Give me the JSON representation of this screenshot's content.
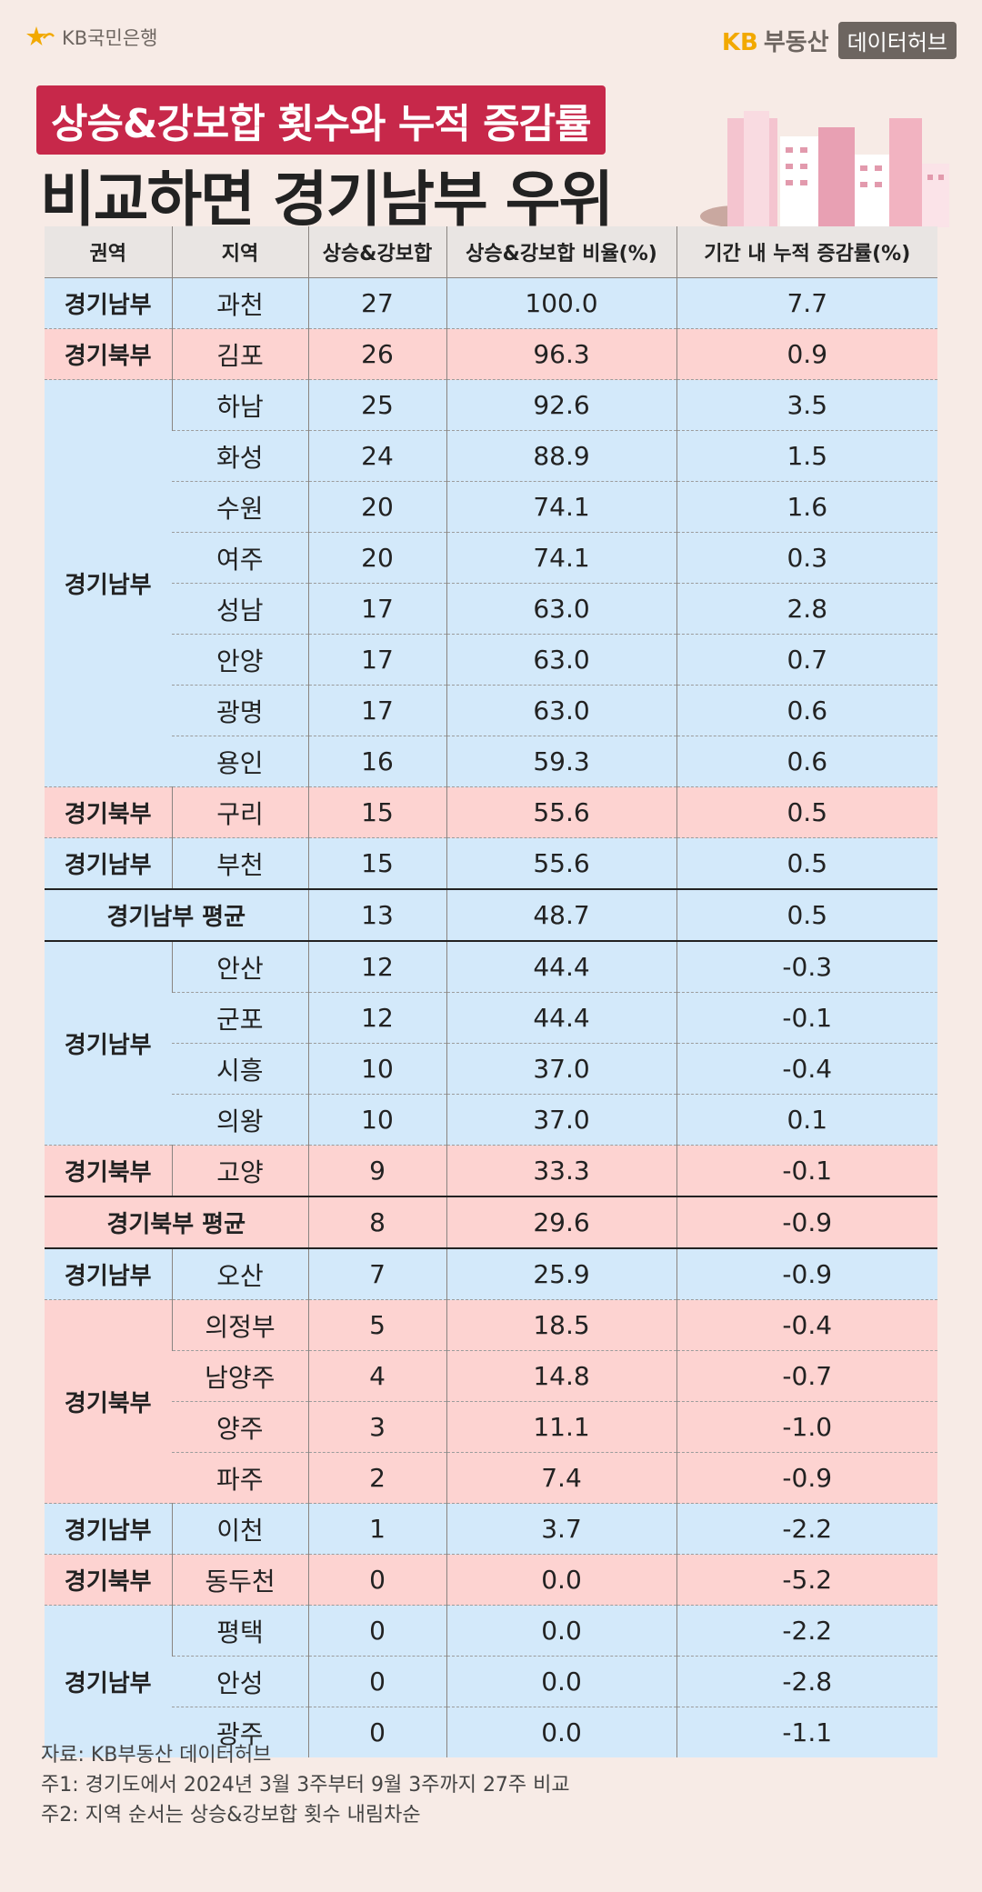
{
  "brand": {
    "bank": "KB국민은행",
    "kb": "KB",
    "site": "부동산",
    "hub": "데이터허브"
  },
  "title": {
    "line1": "상승&강보합 횟수와 누적 증감률",
    "line2": "비교하면 경기남부 우위"
  },
  "table": {
    "headers": [
      "권역",
      "지역",
      "상승&강보합",
      "상승&강보합 비율(%)",
      "기간 내 누적 증감률(%)"
    ],
    "rows": [
      {
        "region": "경기남부",
        "area": "과천",
        "count": "27",
        "ratio": "100.0",
        "change": "7.7"
      },
      {
        "region": "경기북부",
        "area": "김포",
        "count": "26",
        "ratio": "96.3",
        "change": "0.9"
      },
      {
        "region": "경기남부",
        "area": "하남",
        "count": "25",
        "ratio": "92.6",
        "change": "3.5"
      },
      {
        "region": "",
        "area": "화성",
        "count": "24",
        "ratio": "88.9",
        "change": "1.5"
      },
      {
        "region": "",
        "area": "수원",
        "count": "20",
        "ratio": "74.1",
        "change": "1.6"
      },
      {
        "region": "",
        "area": "여주",
        "count": "20",
        "ratio": "74.1",
        "change": "0.3"
      },
      {
        "region": "",
        "area": "성남",
        "count": "17",
        "ratio": "63.0",
        "change": "2.8"
      },
      {
        "region": "",
        "area": "안양",
        "count": "17",
        "ratio": "63.0",
        "change": "0.7"
      },
      {
        "region": "",
        "area": "광명",
        "count": "17",
        "ratio": "63.0",
        "change": "0.6"
      },
      {
        "region": "",
        "area": "용인",
        "count": "16",
        "ratio": "59.3",
        "change": "0.6"
      },
      {
        "region": "경기북부",
        "area": "구리",
        "count": "15",
        "ratio": "55.6",
        "change": "0.5"
      },
      {
        "region": "경기남부",
        "area": "부천",
        "count": "15",
        "ratio": "55.6",
        "change": "0.5"
      },
      {
        "region": "경기남부 평균",
        "area": "",
        "count": "13",
        "ratio": "48.7",
        "change": "0.5"
      },
      {
        "region": "경기남부",
        "area": "안산",
        "count": "12",
        "ratio": "44.4",
        "change": "-0.3"
      },
      {
        "region": "",
        "area": "군포",
        "count": "12",
        "ratio": "44.4",
        "change": "-0.1"
      },
      {
        "region": "",
        "area": "시흥",
        "count": "10",
        "ratio": "37.0",
        "change": "-0.4"
      },
      {
        "region": "",
        "area": "의왕",
        "count": "10",
        "ratio": "37.0",
        "change": "0.1"
      },
      {
        "region": "경기북부",
        "area": "고양",
        "count": "9",
        "ratio": "33.3",
        "change": "-0.1"
      },
      {
        "region": "경기북부 평균",
        "area": "",
        "count": "8",
        "ratio": "29.6",
        "change": "-0.9"
      },
      {
        "region": "경기남부",
        "area": "오산",
        "count": "7",
        "ratio": "25.9",
        "change": "-0.9"
      },
      {
        "region": "경기북부",
        "area": "의정부",
        "count": "5",
        "ratio": "18.5",
        "change": "-0.4"
      },
      {
        "region": "",
        "area": "남양주",
        "count": "4",
        "ratio": "14.8",
        "change": "-0.7"
      },
      {
        "region": "",
        "area": "양주",
        "count": "3",
        "ratio": "11.1",
        "change": "-1.0"
      },
      {
        "region": "",
        "area": "파주",
        "count": "2",
        "ratio": "7.4",
        "change": "-0.9"
      },
      {
        "region": "경기남부",
        "area": "이천",
        "count": "1",
        "ratio": "3.7",
        "change": "-2.2"
      },
      {
        "region": "경기북부",
        "area": "동두천",
        "count": "0",
        "ratio": "0.0",
        "change": "-5.2"
      },
      {
        "region": "경기남부",
        "area": "평택",
        "count": "0",
        "ratio": "0.0",
        "change": "-2.2"
      },
      {
        "region": "",
        "area": "안성",
        "count": "0",
        "ratio": "0.0",
        "change": "-2.8"
      },
      {
        "region": "",
        "area": "광주",
        "count": "0",
        "ratio": "0.0",
        "change": "-1.1"
      }
    ]
  },
  "footer": {
    "source": "자료: KB부동산 데이터허브",
    "note1": "주1: 경기도에서 2024년 3월 3주부터 9월 3주까지 27주 비교",
    "note2": "주2: 지역 순서는 상승&강보합 횟수 내림차순"
  },
  "colors": {
    "south": "#d3e9fa",
    "north": "#fdd3d1",
    "header": "#e9e5e3",
    "title_bg": "#c7284a",
    "brand_yellow": "#f2a900"
  }
}
